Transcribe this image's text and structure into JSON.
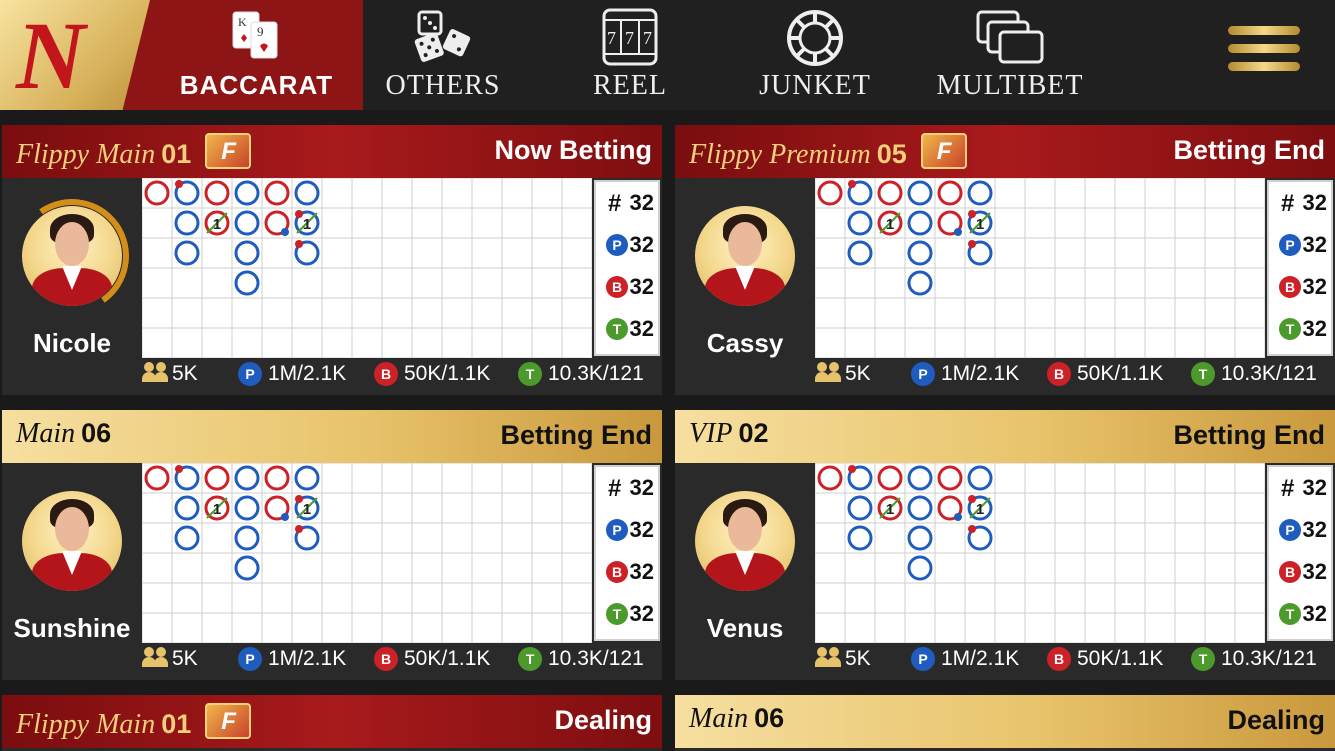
{
  "nav": {
    "logo_letter": "N",
    "tabs": [
      {
        "label": "BACCARAT",
        "icon": "playing-cards-icon",
        "active": true
      },
      {
        "label": "OTHERS",
        "icon": "dice-icon"
      },
      {
        "label": "REEL",
        "icon": "slot-reel-icon"
      },
      {
        "label": "JUNKET",
        "icon": "chip-icon"
      },
      {
        "label": "MULTIBET",
        "icon": "multi-window-icon"
      }
    ],
    "menu_icon": "hamburger-menu-icon"
  },
  "colors": {
    "player": "#1f5cbf",
    "banker": "#cc2127",
    "tie": "#4b9a2b",
    "timer": "#d48d19"
  },
  "tables": [
    {
      "name": "Flippy Main",
      "number": "01",
      "flippy": true,
      "style": "red",
      "status": "Now Betting",
      "dealer": "Nicole",
      "shoe_count": "32",
      "player_count": "32",
      "banker_count": "32",
      "tie_count": "32",
      "players": "5K",
      "player_limit": "1M/2.1K",
      "banker_limit": "50K/1.1K",
      "tie_limit": "10.3K/121",
      "timer_shown": true
    },
    {
      "name": "Flippy Premium",
      "number": "05",
      "flippy": true,
      "style": "red",
      "status": "Betting End",
      "dealer": "Cassy",
      "shoe_count": "32",
      "player_count": "32",
      "banker_count": "32",
      "tie_count": "32",
      "players": "5K",
      "player_limit": "1M/2.1K",
      "banker_limit": "50K/1.1K",
      "tie_limit": "10.3K/121",
      "timer_shown": false
    },
    {
      "name": "Main",
      "number": "06",
      "flippy": false,
      "style": "gold",
      "status": "Betting End",
      "dealer": "Sunshine",
      "shoe_count": "32",
      "player_count": "32",
      "banker_count": "32",
      "tie_count": "32",
      "players": "5K",
      "player_limit": "1M/2.1K",
      "banker_limit": "50K/1.1K",
      "tie_limit": "10.3K/121",
      "timer_shown": false
    },
    {
      "name": "VIP",
      "number": "02",
      "flippy": false,
      "style": "gold",
      "status": "Betting End",
      "dealer": "Venus",
      "shoe_count": "32",
      "player_count": "32",
      "banker_count": "32",
      "tie_count": "32",
      "players": "5K",
      "player_limit": "1M/2.1K",
      "banker_limit": "50K/1.1K",
      "tie_limit": "10.3K/121",
      "timer_shown": false
    },
    {
      "name": "Flippy Main",
      "number": "01",
      "flippy": true,
      "style": "red",
      "status": "Dealing"
    },
    {
      "name": "Main",
      "number": "06",
      "flippy": false,
      "style": "gold",
      "status": "Dealing"
    }
  ],
  "road_legend": {
    "shoe": "#",
    "player": "P",
    "banker": "B",
    "tie": "T"
  },
  "big_road": [
    [
      {
        "r": "B"
      },
      {
        "r": "P",
        "bp": true
      },
      {
        "r": "B"
      },
      {
        "r": "P"
      },
      {
        "r": "B"
      },
      {
        "r": "P"
      }
    ],
    [
      null,
      {
        "r": "P"
      },
      {
        "r": "B",
        "tie": "1"
      },
      {
        "r": "P"
      },
      {
        "r": "B",
        "pp": true
      },
      {
        "r": "P",
        "tie": "1",
        "bp": true
      }
    ],
    [
      null,
      {
        "r": "P"
      },
      null,
      {
        "r": "P"
      },
      null,
      {
        "r": "P",
        "bp": true
      }
    ],
    [
      null,
      null,
      null,
      {
        "r": "P"
      },
      null,
      null
    ]
  ]
}
